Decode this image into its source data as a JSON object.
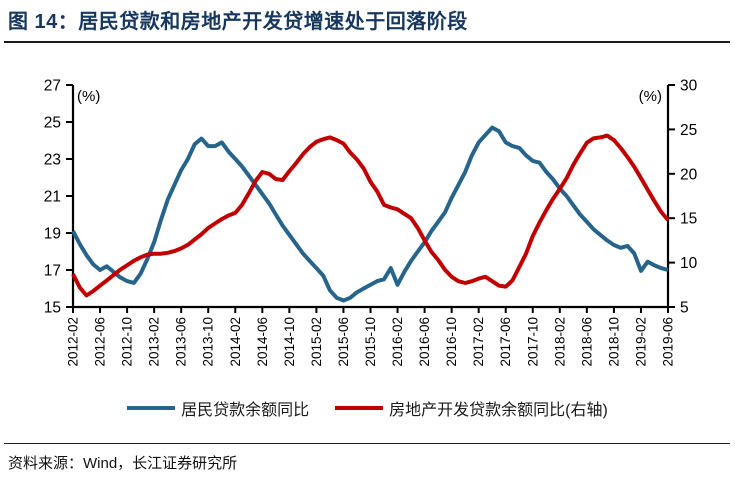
{
  "header": {
    "title": "图 14：居民贷款和房地产开发贷增速处于回落阶段"
  },
  "footer": {
    "source": "资料来源：Wind，长江证券研究所"
  },
  "colors": {
    "accent_blue": "#26648B",
    "accent_red": "#C00000",
    "title_navy": "#17375e",
    "axis_black": "#000000"
  },
  "chart_data": {
    "type": "line",
    "title": "居民贷款和房地产开发贷增速处于回落阶段",
    "grid": false,
    "legend_position": "bottom",
    "x_start": "2012-02",
    "x_end": "2019-06",
    "x_interval": "monthly",
    "x_tick_labels": [
      "2012-02",
      "2012-06",
      "2012-10",
      "2013-02",
      "2013-06",
      "2013-10",
      "2014-02",
      "2014-06",
      "2014-10",
      "2015-02",
      "2015-06",
      "2015-10",
      "2016-02",
      "2016-06",
      "2016-10",
      "2017-02",
      "2017-06",
      "2017-10",
      "2018-02",
      "2018-06",
      "2018-10",
      "2019-02",
      "2019-06"
    ],
    "x_tick_step_months": 4,
    "left_axis": {
      "label": "(%)",
      "min": 15,
      "max": 27,
      "ticks": [
        27,
        25,
        23,
        21,
        19,
        17,
        15
      ]
    },
    "right_axis": {
      "label": "(%)",
      "min": 5,
      "max": 30,
      "ticks": [
        30,
        25,
        20,
        15,
        10,
        5
      ]
    },
    "series": [
      {
        "name": "居民贷款余额同比",
        "axis": "left",
        "color": "#26648B",
        "values": [
          19.1,
          18.4,
          17.8,
          17.3,
          17.0,
          17.2,
          16.9,
          16.6,
          16.4,
          16.3,
          16.8,
          17.6,
          18.5,
          19.7,
          20.8,
          21.6,
          22.4,
          23.0,
          23.8,
          24.1,
          23.7,
          23.7,
          23.9,
          23.4,
          23.0,
          22.6,
          22.1,
          21.6,
          21.1,
          20.6,
          20.0,
          19.4,
          18.9,
          18.4,
          17.9,
          17.5,
          17.1,
          16.7,
          15.9,
          15.5,
          15.35,
          15.5,
          15.8,
          16.0,
          16.2,
          16.4,
          16.5,
          17.1,
          16.2,
          16.9,
          17.5,
          18.0,
          18.5,
          19.1,
          19.6,
          20.1,
          20.9,
          21.6,
          22.3,
          23.2,
          23.9,
          24.3,
          24.7,
          24.5,
          23.9,
          23.7,
          23.6,
          23.2,
          22.9,
          22.8,
          22.3,
          21.9,
          21.4,
          21.0,
          20.5,
          20.0,
          19.6,
          19.2,
          18.9,
          18.6,
          18.35,
          18.2,
          18.3,
          17.9,
          16.95,
          17.45,
          17.25,
          17.1,
          17.0
        ]
      },
      {
        "name": "房地产开发贷款余额同比(右轴)",
        "axis": "right",
        "color": "#C00000",
        "values": [
          8.7,
          7.2,
          6.3,
          6.8,
          7.4,
          8.0,
          8.6,
          9.2,
          9.7,
          10.2,
          10.6,
          10.9,
          11.0,
          11.0,
          11.1,
          11.3,
          11.6,
          12.0,
          12.6,
          13.2,
          13.9,
          14.4,
          14.9,
          15.3,
          15.6,
          16.5,
          17.8,
          19.2,
          20.2,
          20.0,
          19.4,
          19.3,
          20.3,
          21.2,
          22.2,
          23.0,
          23.6,
          23.9,
          24.1,
          23.8,
          23.4,
          22.4,
          21.6,
          20.6,
          19.1,
          18.0,
          16.5,
          16.2,
          16.0,
          15.5,
          15.0,
          13.9,
          12.5,
          11.2,
          10.3,
          9.2,
          8.4,
          7.9,
          7.7,
          7.9,
          8.2,
          8.4,
          7.9,
          7.4,
          7.3,
          8.0,
          9.5,
          11.0,
          13.0,
          14.5,
          15.9,
          17.2,
          18.3,
          19.5,
          21.0,
          22.3,
          23.5,
          24.0,
          24.1,
          24.3,
          23.8,
          22.9,
          21.9,
          20.8,
          19.5,
          18.2,
          16.9,
          15.7,
          14.8
        ]
      }
    ]
  }
}
